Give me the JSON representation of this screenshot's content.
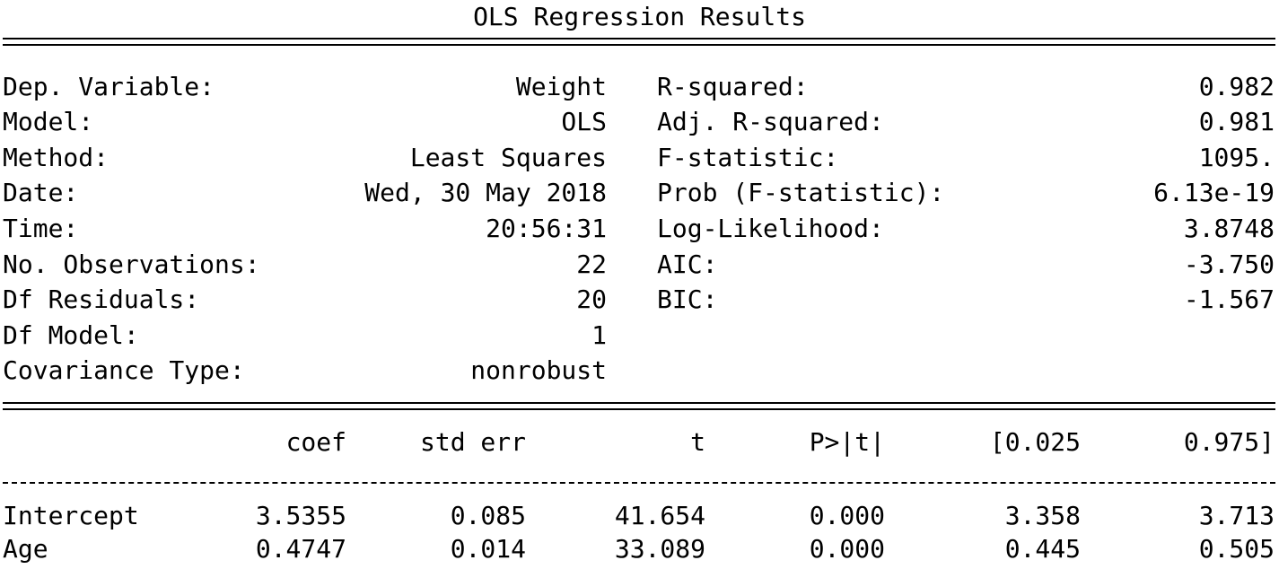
{
  "title": "OLS Regression Results",
  "summary_left": [
    {
      "label": "Dep. Variable:",
      "value": "Weight"
    },
    {
      "label": "Model:",
      "value": "OLS"
    },
    {
      "label": "Method:",
      "value": "Least Squares"
    },
    {
      "label": "Date:",
      "value": "Wed, 30 May 2018"
    },
    {
      "label": "Time:",
      "value": "20:56:31"
    },
    {
      "label": "No. Observations:",
      "value": "22"
    },
    {
      "label": "Df Residuals:",
      "value": "20"
    },
    {
      "label": "Df Model:",
      "value": "1"
    },
    {
      "label": "Covariance Type:",
      "value": "nonrobust"
    }
  ],
  "summary_right": [
    {
      "label": "R-squared:",
      "value": "0.982"
    },
    {
      "label": "Adj. R-squared:",
      "value": "0.981"
    },
    {
      "label": "F-statistic:",
      "value": "1095."
    },
    {
      "label": "Prob (F-statistic):",
      "value": "6.13e-19"
    },
    {
      "label": "Log-Likelihood:",
      "value": "3.8748"
    },
    {
      "label": "AIC:",
      "value": "-3.750"
    },
    {
      "label": "BIC:",
      "value": "-1.567"
    }
  ],
  "coef_table": {
    "headers": [
      "coef",
      "std err",
      "t",
      "P>|t|",
      "[0.025",
      "0.975]"
    ],
    "rows": [
      {
        "name": "Intercept",
        "values": [
          "3.5355",
          "0.085",
          "41.654",
          "0.000",
          "3.358",
          "3.713"
        ]
      },
      {
        "name": "Age",
        "values": [
          "0.4747",
          "0.014",
          "33.089",
          "0.000",
          "0.445",
          "0.505"
        ]
      }
    ]
  }
}
